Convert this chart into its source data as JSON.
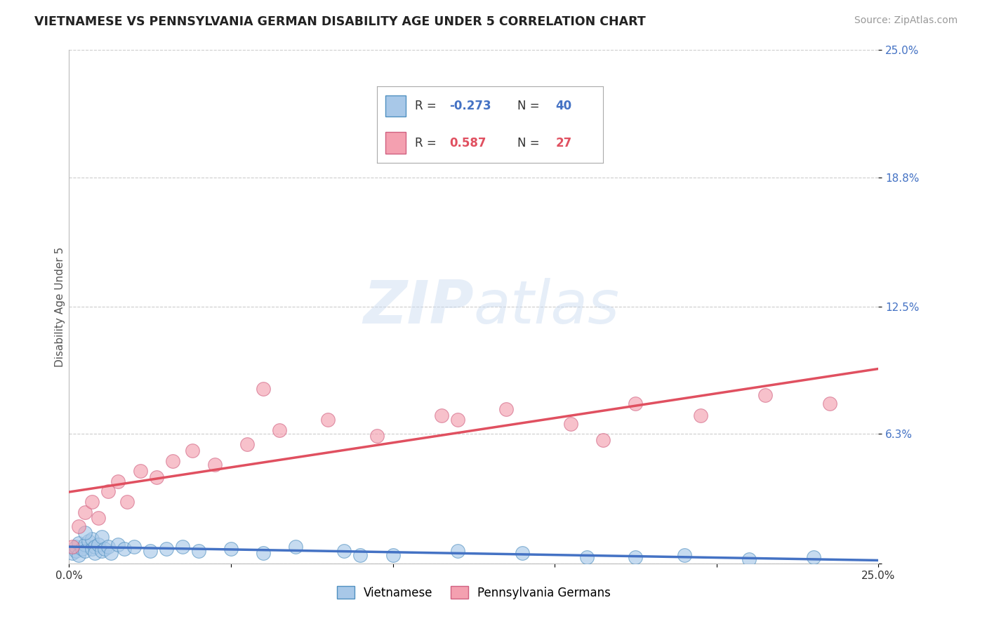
{
  "title": "VIETNAMESE VS PENNSYLVANIA GERMAN DISABILITY AGE UNDER 5 CORRELATION CHART",
  "source": "Source: ZipAtlas.com",
  "ylabel": "Disability Age Under 5",
  "xlim": [
    0.0,
    0.25
  ],
  "ylim": [
    0.0,
    0.25
  ],
  "ytick_positions": [
    0.0,
    0.063,
    0.125,
    0.188,
    0.25
  ],
  "ytick_labels": [
    "",
    "6.3%",
    "12.5%",
    "18.8%",
    "25.0%"
  ],
  "xtick_positions": [
    0.0,
    0.05,
    0.1,
    0.15,
    0.2,
    0.25
  ],
  "xtick_labels": [
    "0.0%",
    "",
    "",
    "",
    "",
    "25.0%"
  ],
  "background_color": "#ffffff",
  "grid_color": "#cccccc",
  "color_vietnamese": "#a8c8e8",
  "color_pa_german": "#f4a0b0",
  "edge_vietnamese": "#5090c0",
  "edge_pa_german": "#d06080",
  "line_color_vietnamese": "#4472c4",
  "line_color_pa_german": "#e05060",
  "r_viet": "-0.273",
  "n_viet": "40",
  "r_pa": "0.587",
  "n_pa": "27",
  "viet_color_text": "#4472c4",
  "pa_color_text": "#e05060",
  "vietnamese_x": [
    0.001,
    0.002,
    0.002,
    0.003,
    0.003,
    0.004,
    0.005,
    0.005,
    0.006,
    0.007,
    0.007,
    0.008,
    0.008,
    0.009,
    0.01,
    0.01,
    0.011,
    0.012,
    0.013,
    0.015,
    0.017,
    0.02,
    0.025,
    0.03,
    0.035,
    0.04,
    0.05,
    0.06,
    0.07,
    0.085,
    0.1,
    0.12,
    0.14,
    0.16,
    0.19,
    0.21,
    0.23,
    0.005,
    0.09,
    0.175
  ],
  "vietnamese_y": [
    0.005,
    0.006,
    0.008,
    0.004,
    0.01,
    0.007,
    0.009,
    0.006,
    0.011,
    0.007,
    0.012,
    0.008,
    0.005,
    0.009,
    0.006,
    0.013,
    0.007,
    0.008,
    0.005,
    0.009,
    0.007,
    0.008,
    0.006,
    0.007,
    0.008,
    0.006,
    0.007,
    0.005,
    0.008,
    0.006,
    0.004,
    0.006,
    0.005,
    0.003,
    0.004,
    0.002,
    0.003,
    0.015,
    0.004,
    0.003
  ],
  "pa_german_x": [
    0.001,
    0.003,
    0.005,
    0.007,
    0.009,
    0.012,
    0.015,
    0.018,
    0.022,
    0.027,
    0.032,
    0.038,
    0.045,
    0.055,
    0.065,
    0.08,
    0.095,
    0.115,
    0.135,
    0.155,
    0.175,
    0.195,
    0.215,
    0.235,
    0.06,
    0.12,
    0.165
  ],
  "pa_german_y": [
    0.008,
    0.018,
    0.025,
    0.03,
    0.022,
    0.035,
    0.04,
    0.03,
    0.045,
    0.042,
    0.05,
    0.055,
    0.048,
    0.058,
    0.065,
    0.07,
    0.062,
    0.072,
    0.075,
    0.068,
    0.078,
    0.072,
    0.082,
    0.078,
    0.085,
    0.07,
    0.06
  ]
}
